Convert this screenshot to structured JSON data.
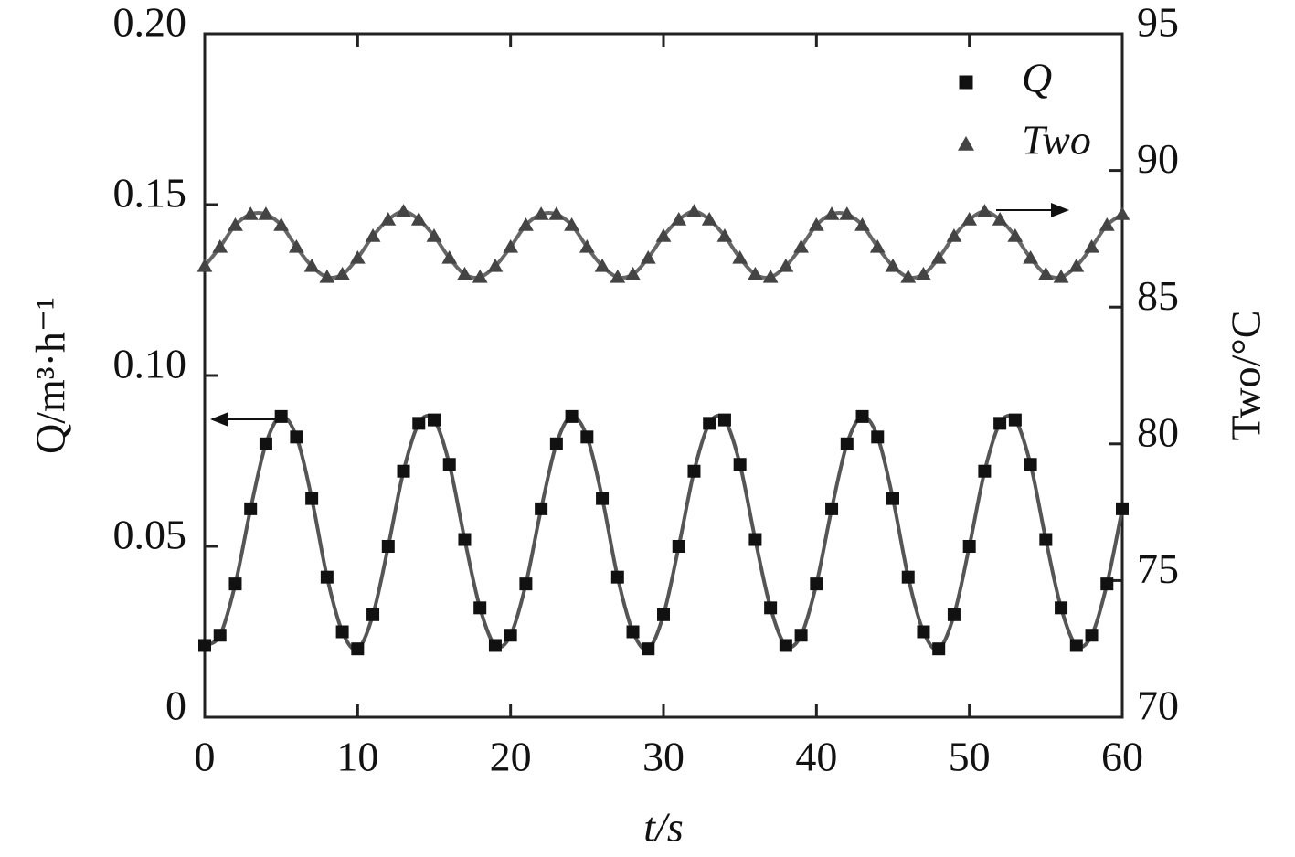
{
  "chart_data": {
    "type": "scatter",
    "x_label": "t/s",
    "y_label": "Q/m³·h⁻¹",
    "y2_label": "Two/°C",
    "x": [
      0,
      1,
      2,
      3,
      4,
      5,
      6,
      7,
      8,
      9,
      10,
      11,
      12,
      13,
      14,
      15,
      16,
      17,
      18,
      19,
      20,
      21,
      22,
      23,
      24,
      25,
      26,
      27,
      28,
      29,
      30,
      31,
      32,
      33,
      34,
      35,
      36,
      37,
      38,
      39,
      40,
      41,
      42,
      43,
      44,
      45,
      46,
      47,
      48,
      49,
      50,
      51,
      52,
      53,
      54,
      55,
      56,
      57,
      58,
      59,
      60
    ],
    "xlim": [
      0,
      60
    ],
    "xticks": [
      0,
      10,
      20,
      30,
      40,
      50,
      60
    ],
    "ylim": [
      0,
      0.2
    ],
    "yticks": [
      0,
      0.05,
      {
        "value": 0.1,
        "label": "0.10"
      },
      0.15,
      {
        "value": 0.2,
        "label": "0.20"
      }
    ],
    "y2lim": [
      70,
      95
    ],
    "y2ticks": [
      70,
      75,
      80,
      85,
      90,
      95
    ],
    "legend": "upper right",
    "series": [
      {
        "name": "Q",
        "color": "#111111",
        "line_color": "#555555",
        "marker": "square",
        "line": true,
        "values": [
          0.021,
          0.024,
          0.039,
          0.061,
          0.08,
          0.088,
          0.082,
          0.064,
          0.041,
          0.025,
          0.02,
          0.03,
          0.05,
          0.072,
          0.086,
          0.087,
          0.074,
          0.052,
          0.032,
          0.021,
          0.024,
          0.039,
          0.061,
          0.08,
          0.088,
          0.082,
          0.064,
          0.041,
          0.025,
          0.02,
          0.03,
          0.05,
          0.072,
          0.086,
          0.087,
          0.074,
          0.052,
          0.032,
          0.021,
          0.024,
          0.039,
          0.061,
          0.08,
          0.088,
          0.082,
          0.064,
          0.041,
          0.025,
          0.02,
          0.03,
          0.05,
          0.072,
          0.086,
          0.087,
          0.074,
          0.052,
          0.032,
          0.021,
          0.024,
          0.039,
          0.061
        ]
      },
      {
        "name": "Two",
        "color": "#444444",
        "line_color": "#666666",
        "marker": "triangle",
        "line": true,
        "axis": "y2",
        "values": [
          86.5,
          87.2,
          88.0,
          88.4,
          88.4,
          88.0,
          87.2,
          86.5,
          86.1,
          86.2,
          86.8,
          87.6,
          88.2,
          88.5,
          88.2,
          87.6,
          86.8,
          86.2,
          86.1,
          86.5,
          87.2,
          88.0,
          88.4,
          88.4,
          88.0,
          87.2,
          86.5,
          86.1,
          86.2,
          86.8,
          87.6,
          88.2,
          88.5,
          88.2,
          87.6,
          86.8,
          86.2,
          86.1,
          86.5,
          87.2,
          88.0,
          88.4,
          88.4,
          88.0,
          87.2,
          86.5,
          86.1,
          86.2,
          86.8,
          87.6,
          88.2,
          88.5,
          88.2,
          87.6,
          86.8,
          86.2,
          86.1,
          86.5,
          87.2,
          88.0,
          88.4
        ]
      }
    ]
  }
}
